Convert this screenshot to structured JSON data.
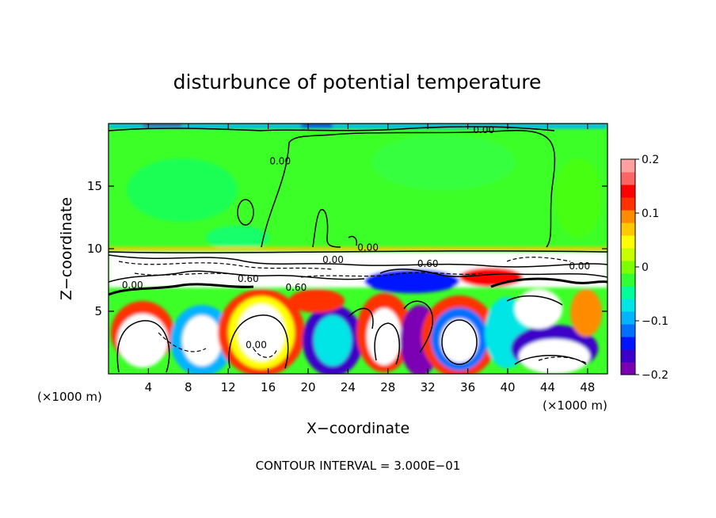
{
  "chart_data": {
    "type": "heatmap",
    "title": "disturbunce of potential temperature",
    "xlabel": "X−coordinate",
    "ylabel": "Z−coordinate",
    "x_unit_left": "(×1000 m)",
    "x_unit_right": "(×1000 m)",
    "xlim": [
      0,
      50
    ],
    "ylim": [
      0,
      20
    ],
    "x_ticks": [
      4,
      8,
      12,
      16,
      20,
      24,
      28,
      32,
      36,
      40,
      44,
      48
    ],
    "x_tick_labels": [
      "4",
      "8",
      "12",
      "16",
      "20",
      "24",
      "28",
      "32",
      "36",
      "40",
      "44",
      "48"
    ],
    "y_ticks": [
      5,
      10,
      15
    ],
    "y_tick_labels": [
      "5",
      "10",
      "15"
    ],
    "colorbar": {
      "range": [
        -0.2,
        0.2
      ],
      "ticks": [
        0.2,
        0.1,
        0,
        -0.1,
        -0.2
      ],
      "tick_labels": [
        "0.2",
        "0.1",
        "0",
        "−0.1",
        "−0.2"
      ],
      "colors": [
        "#7b00b4",
        "#3c00c8",
        "#0014ff",
        "#0070ff",
        "#00b4ff",
        "#00e6e6",
        "#00ff9a",
        "#32ff32",
        "#7cff00",
        "#c8ff00",
        "#ffff00",
        "#ffc800",
        "#ff8c00",
        "#ff3200",
        "#ff0000",
        "#ff6464",
        "#ffa0a0"
      ]
    },
    "contour_labels": [
      {
        "text": "0.00",
        "x": 37.6,
        "y": 19.5
      },
      {
        "text": "0.00",
        "x": 17.2,
        "y": 17.0
      },
      {
        "text": "0.00",
        "x": 26.0,
        "y": 10.1
      },
      {
        "text": "0.00",
        "x": 22.5,
        "y": 9.1
      },
      {
        "text": "0.60",
        "x": 32.0,
        "y": 8.8
      },
      {
        "text": "0.60",
        "x": 14.0,
        "y": 7.6
      },
      {
        "text": "0.60",
        "x": 18.8,
        "y": 6.9
      },
      {
        "text": "0.00",
        "x": 2.4,
        "y": 7.1
      },
      {
        "text": "0.00",
        "x": 47.2,
        "y": 8.6
      },
      {
        "text": "0.00",
        "x": 14.8,
        "y": 2.3
      }
    ],
    "footer": "CONTOUR INTERVAL = 3.000E−01"
  }
}
